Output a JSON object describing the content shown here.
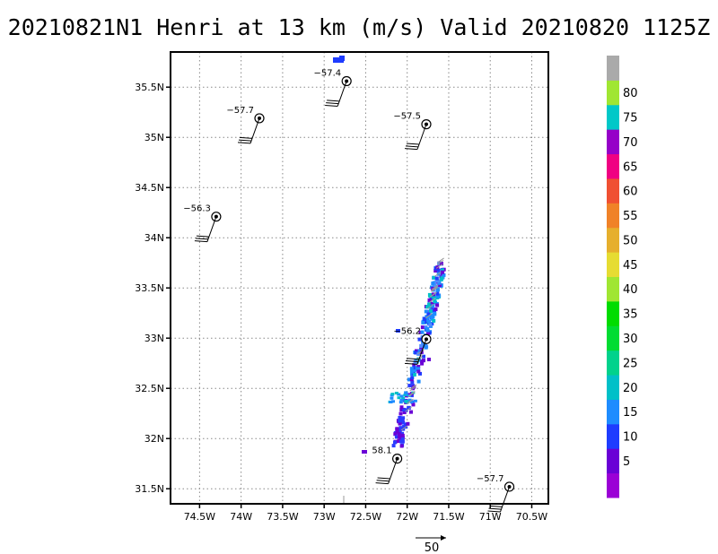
{
  "chart_data": {
    "type": "scatter",
    "title": "20210821N1 Henri at 13 km (m/s) Valid 20210820 1125Z",
    "xlim": [
      -74.85,
      -70.3
    ],
    "ylim": [
      31.35,
      35.85
    ],
    "x_ticks": [
      -74.5,
      -74,
      -73.5,
      -73,
      -72.5,
      -72,
      -71.5,
      -71,
      -70.5
    ],
    "x_tick_labels": [
      "74.5W",
      "74W",
      "73.5W",
      "73W",
      "72.5W",
      "72W",
      "71.5W",
      "71W",
      "70.5W"
    ],
    "y_ticks": [
      31.5,
      32,
      32.5,
      33,
      33.5,
      34,
      34.5,
      35,
      35.5
    ],
    "y_tick_labels": [
      "31.5N",
      "32N",
      "32.5N",
      "33N",
      "33.5N",
      "34N",
      "34.5N",
      "35N",
      "35.5N"
    ],
    "grid": true,
    "dropsondes": [
      {
        "lon": -72.73,
        "lat": 35.56,
        "label": "−57.4"
      },
      {
        "lon": -73.78,
        "lat": 35.19,
        "label": "−57.7"
      },
      {
        "lon": -71.77,
        "lat": 35.13,
        "label": "−57.5"
      },
      {
        "lon": -74.3,
        "lat": 34.21,
        "label": "−56.3"
      },
      {
        "lon": -71.77,
        "lat": 32.99,
        "label": "−56.2"
      },
      {
        "lon": -72.12,
        "lat": 31.8,
        "label": "58.1"
      },
      {
        "lon": -70.77,
        "lat": 31.52,
        "label": "−57.7"
      }
    ],
    "colorbar": {
      "labels": [
        "5",
        "10",
        "15",
        "20",
        "25",
        "30",
        "35",
        "40",
        "45",
        "50",
        "55",
        "60",
        "65",
        "70",
        "75",
        "80"
      ],
      "colors": [
        "#9b00d6",
        "#6a00d6",
        "#1e3cff",
        "#1e8cff",
        "#00c0c8",
        "#00d28c",
        "#00dc32",
        "#00dc00",
        "#a0e632",
        "#e6dc32",
        "#e6af2d",
        "#f08228",
        "#f05032",
        "#f00082",
        "#9600c8",
        "#00c8c8",
        "#a0e632",
        "#aaaaaa"
      ]
    },
    "reference_vector": {
      "value": "50",
      "units": "m/s"
    }
  }
}
